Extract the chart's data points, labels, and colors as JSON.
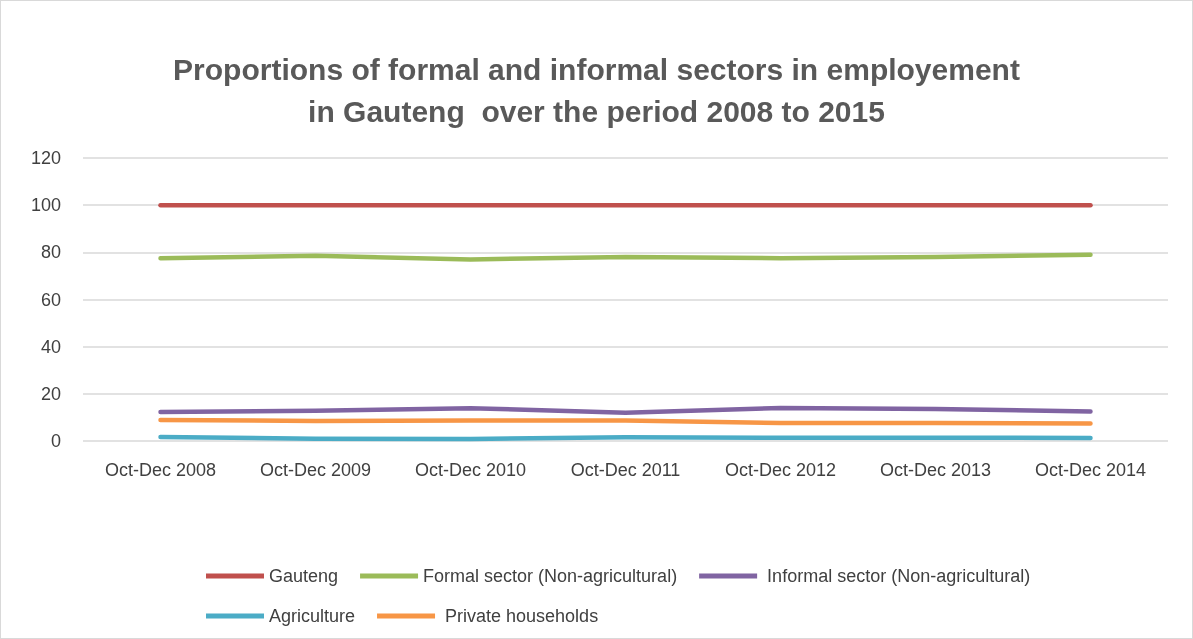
{
  "chart_data": {
    "type": "line",
    "title": "Proportions of formal and informal sectors in employement\nin Gauteng  over the period 2008 to 2015",
    "categories": [
      "Oct-Dec 2008",
      "Oct-Dec 2009",
      "Oct-Dec 2010",
      "Oct-Dec 2011",
      "Oct-Dec 2012",
      "Oct-Dec 2013",
      "Oct-Dec 2014"
    ],
    "series": [
      {
        "name": "Gauteng",
        "color": "#c0504d",
        "values": [
          100,
          100,
          100,
          100,
          100,
          100,
          100
        ]
      },
      {
        "name": "Formal sector (Non-agricultural)",
        "color": "#9bbb59",
        "values": [
          77.5,
          78.5,
          77,
          78,
          77.5,
          78,
          79
        ]
      },
      {
        "name": " Informal sector (Non-agricultural)",
        "color": "#8064a2",
        "values": [
          12.3,
          12.8,
          13.9,
          12,
          14,
          13.6,
          12.5
        ]
      },
      {
        "name": "Agriculture",
        "color": "#4bacc6",
        "values": [
          1.7,
          1,
          0.9,
          1.6,
          1.4,
          1.4,
          1.3
        ]
      },
      {
        "name": " Private households",
        "color": "#f79646",
        "values": [
          8.9,
          8.5,
          8.7,
          8.7,
          7.6,
          7.6,
          7.4
        ]
      }
    ],
    "ylim": [
      0,
      120
    ],
    "yticks": [
      0,
      20,
      40,
      60,
      80,
      100,
      120
    ],
    "grid": "y",
    "legend": "bottom",
    "marker": "none",
    "line_style": "solid"
  }
}
